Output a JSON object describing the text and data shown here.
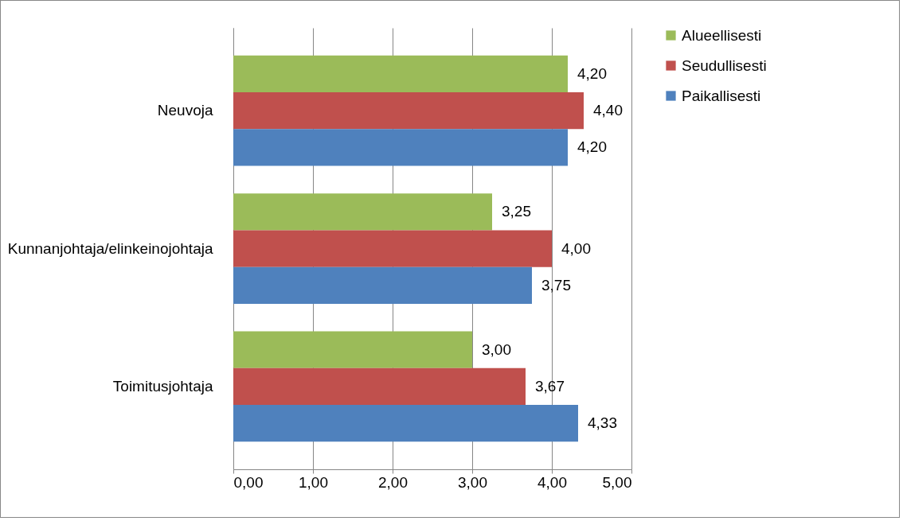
{
  "chart_data": {
    "type": "bar",
    "orientation": "horizontal",
    "categories": [
      "Neuvoja",
      "Kunnanjohtaja/elinkeinojohtaja",
      "Toimitusjohtaja"
    ],
    "series": [
      {
        "name": "Alueellisesti",
        "color": "#9bbb59",
        "values": [
          4.2,
          3.25,
          3.0
        ],
        "value_labels": [
          "4,20",
          "3,25",
          "3,00"
        ]
      },
      {
        "name": "Seudullisesti",
        "color": "#c0504d",
        "values": [
          4.4,
          4.0,
          3.67
        ],
        "value_labels": [
          "4,40",
          "4,00",
          "3,67"
        ]
      },
      {
        "name": "Paikallisesti",
        "color": "#4f81bd",
        "values": [
          4.2,
          3.75,
          4.33
        ],
        "value_labels": [
          "4,20",
          "3,75",
          "4,33"
        ]
      }
    ],
    "xlim": [
      0,
      5
    ],
    "xticks": [
      {
        "value": 0,
        "label": "0,00"
      },
      {
        "value": 1,
        "label": "1,00"
      },
      {
        "value": 2,
        "label": "2,00"
      },
      {
        "value": 3,
        "label": "3,00"
      },
      {
        "value": 4,
        "label": "4,00"
      },
      {
        "value": 5,
        "label": "5,00"
      }
    ],
    "grid": "x",
    "legend": "right"
  }
}
